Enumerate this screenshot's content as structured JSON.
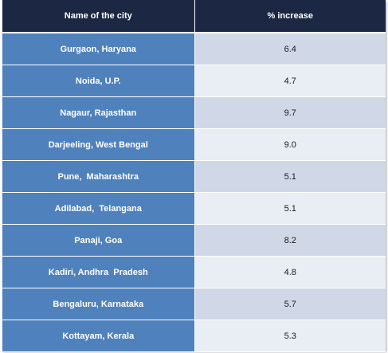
{
  "chart_data": {
    "type": "table",
    "columns": [
      "Name of the city",
      "% increase"
    ],
    "rows": [
      {
        "city": "Gurgaon, Haryana",
        "value": "6.4"
      },
      {
        "city": "Noida, U.P.",
        "value": "4.7"
      },
      {
        "city": "Nagaur, Rajasthan",
        "value": "9.7"
      },
      {
        "city": "Darjeeling, West Bengal",
        "value": "9.0"
      },
      {
        "city": "Pune,  Maharashtra",
        "value": "5.1"
      },
      {
        "city": "Adilabad,  Telangana",
        "value": "5.1"
      },
      {
        "city": "Panaji, Goa",
        "value": "8.2"
      },
      {
        "city": "Kadiri, Andhra  Pradesh",
        "value": "4.8"
      },
      {
        "city": "Bengaluru, Karnataka",
        "value": "5.7"
      },
      {
        "city": "Kottayam, Kerala",
        "value": "5.3"
      }
    ]
  },
  "colors": {
    "header_bg": "#1c2743",
    "city_bg": "#4f81bd",
    "value_bg_odd": "#d0d8e8",
    "value_bg_even": "#e9edf4"
  }
}
